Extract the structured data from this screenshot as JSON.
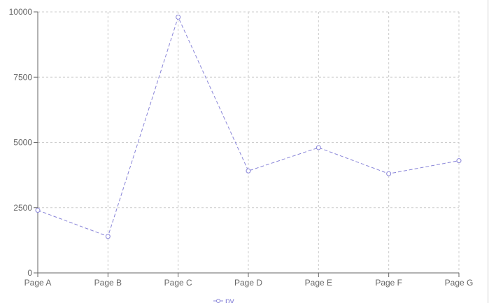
{
  "chart_data": {
    "type": "line",
    "categories": [
      "Page A",
      "Page B",
      "Page C",
      "Page D",
      "Page E",
      "Page F",
      "Page G"
    ],
    "series": [
      {
        "name": "pv",
        "values": [
          2400,
          1398,
          9800,
          3908,
          4800,
          3800,
          4300
        ],
        "color": "#8884d8",
        "dashed": true
      }
    ],
    "yticks": [
      0,
      2500,
      5000,
      7500,
      10000
    ],
    "ylim": [
      0,
      10000
    ],
    "grid": true,
    "legend": "bottom"
  }
}
